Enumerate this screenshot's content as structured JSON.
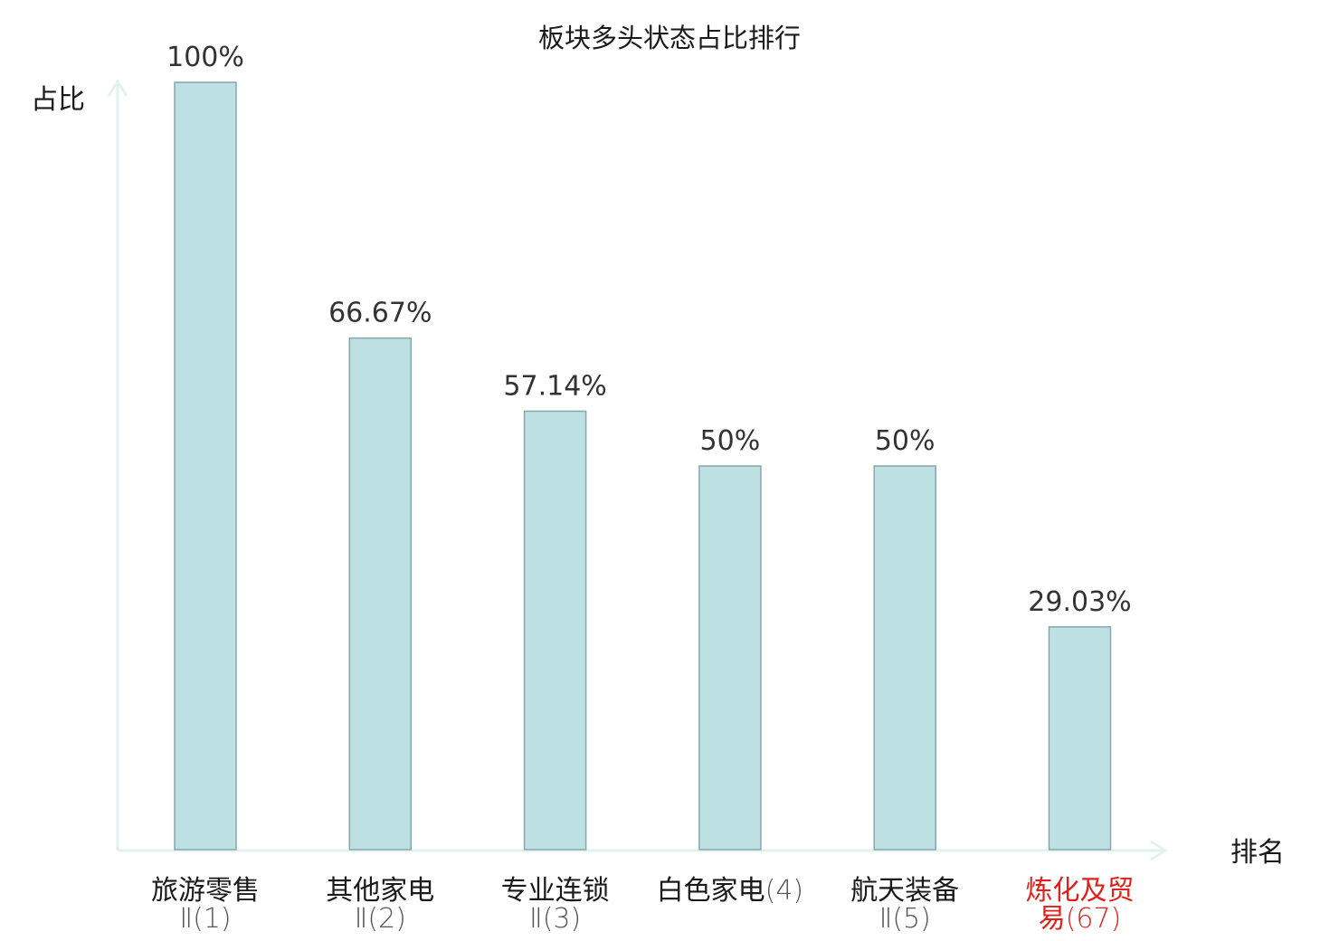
{
  "chart_data": {
    "type": "bar",
    "title": "板块多头状态占比排行",
    "ylabel": "占比",
    "xlabel": "排名",
    "ylim": [
      0,
      100
    ],
    "grid": false,
    "categories": [
      {
        "line1": "旅游零售",
        "line2": "Ⅱ(1)",
        "highlight": false
      },
      {
        "line1": "其他家电",
        "line2": "Ⅱ(2)",
        "highlight": false
      },
      {
        "line1": "专业连锁",
        "line2": "Ⅱ(3)",
        "highlight": false
      },
      {
        "line1": "白色家电",
        "line2": "(4)",
        "highlight": false
      },
      {
        "line1": "航天装备",
        "line2": "Ⅱ(5)",
        "highlight": false
      },
      {
        "line1": "炼化及贸",
        "line2": "易(67)",
        "highlight": true
      }
    ],
    "values": [
      100,
      66.67,
      57.14,
      50,
      50,
      29.03
    ],
    "value_labels": [
      "100%",
      "66.67%",
      "57.14%",
      "50%",
      "50%",
      "29.03%"
    ]
  },
  "colors": {
    "bar_fill": "#bde0e3",
    "bar_stroke": "#86a8ab",
    "axis": "#e2f2ef",
    "text": "#1a1a1a",
    "sub_text": "#555555",
    "highlight": "#e0201b"
  }
}
